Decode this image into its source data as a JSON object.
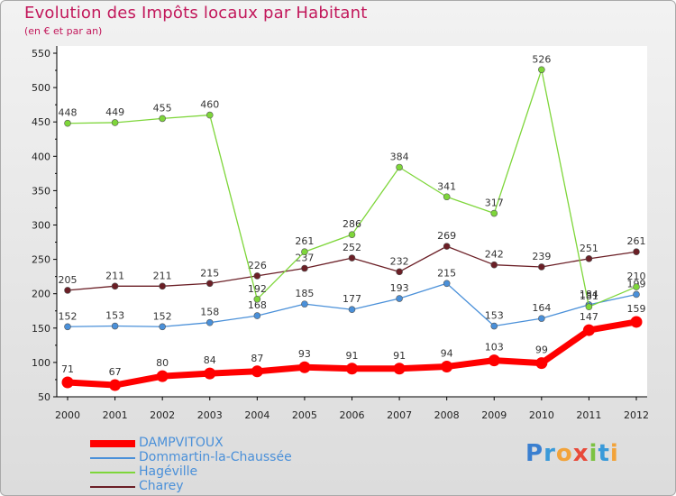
{
  "header": {
    "title": "Evolution des Impôts locaux par Habitant",
    "subtitle": "(en € et par an)"
  },
  "legend": {
    "items": [
      {
        "label": "DAMPVITOUX",
        "color": "#ff0000"
      },
      {
        "label": "Dommartin-la-Chaussée",
        "color": "#4a90d9"
      },
      {
        "label": "Hagéville",
        "color": "#7ed63a"
      },
      {
        "label": "Charey",
        "color": "#6b1f26"
      }
    ]
  },
  "logo": {
    "text": "Proxiti"
  },
  "chart_data": {
    "type": "line",
    "title": "Evolution des Impôts locaux par Habitant",
    "subtitle": "(en € et par an)",
    "x": [
      "2000",
      "2001",
      "2002",
      "2003",
      "2004",
      "2005",
      "2006",
      "2007",
      "2008",
      "2009",
      "2010",
      "2011",
      "2012"
    ],
    "ylim": [
      50,
      550
    ],
    "yticks": [
      50,
      100,
      150,
      200,
      250,
      300,
      350,
      400,
      450,
      500,
      550
    ],
    "grid": false,
    "legend_position": "bottom-left",
    "series": [
      {
        "name": "DAMPVITOUX",
        "color": "#ff0000",
        "values": [
          71,
          67,
          80,
          84,
          87,
          93,
          91,
          91,
          94,
          103,
          99,
          147,
          159
        ]
      },
      {
        "name": "Dommartin-la-Chaussée",
        "color": "#4a90d9",
        "values": [
          152,
          153,
          152,
          158,
          168,
          185,
          177,
          193,
          215,
          153,
          164,
          184,
          199
        ]
      },
      {
        "name": "Hagéville",
        "color": "#7ed63a",
        "values": [
          448,
          449,
          455,
          460,
          192,
          261,
          286,
          384,
          341,
          317,
          526,
          181,
          210
        ]
      },
      {
        "name": "Charey",
        "color": "#6b1f26",
        "values": [
          205,
          211,
          211,
          215,
          226,
          237,
          252,
          232,
          269,
          242,
          239,
          251,
          261
        ]
      }
    ]
  }
}
